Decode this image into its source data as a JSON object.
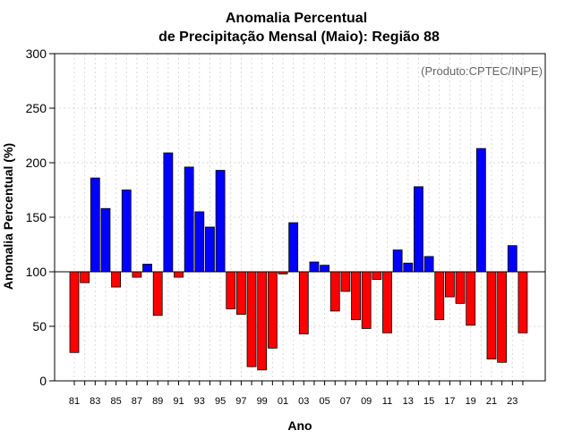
{
  "chart_data": {
    "type": "bar",
    "title_line1": "Anomalia Percentual",
    "title_line2": "de Precipitação Mensal (Maio): Região 88",
    "xlabel": "Ano",
    "ylabel": "Anomalia Percentual (%)",
    "annotation": "(Produto:CPTEC/INPE)",
    "ylim": [
      0,
      300
    ],
    "yticks": [
      0,
      50,
      100,
      150,
      200,
      250,
      300
    ],
    "baseline": 100,
    "grid": true,
    "colors": {
      "above": "#0000ff",
      "below": "#ff0000",
      "edge": "#000000",
      "grid": "#d9d9d9"
    },
    "categories": [
      "81",
      "82",
      "83",
      "84",
      "85",
      "86",
      "87",
      "88",
      "89",
      "90",
      "91",
      "92",
      "93",
      "94",
      "95",
      "96",
      "97",
      "98",
      "99",
      "00",
      "01",
      "02",
      "03",
      "04",
      "05",
      "06",
      "07",
      "08",
      "09",
      "10",
      "11",
      "12",
      "13",
      "14",
      "15",
      "16",
      "17",
      "18",
      "19",
      "20",
      "21",
      "22",
      "23",
      "24"
    ],
    "xtick_labels": [
      "81",
      "83",
      "85",
      "87",
      "89",
      "91",
      "93",
      "95",
      "97",
      "99",
      "01",
      "03",
      "05",
      "07",
      "09",
      "11",
      "13",
      "15",
      "17",
      "19",
      "21",
      "23"
    ],
    "values": [
      26,
      90,
      186,
      158,
      86,
      175,
      95,
      107,
      60,
      209,
      95,
      196,
      155,
      141,
      193,
      66,
      61,
      13,
      10,
      30,
      98,
      145,
      43,
      109,
      106,
      64,
      82,
      56,
      48,
      93,
      44,
      120,
      108,
      178,
      114,
      56,
      77,
      71,
      51,
      213,
      20,
      17,
      124,
      44
    ]
  }
}
